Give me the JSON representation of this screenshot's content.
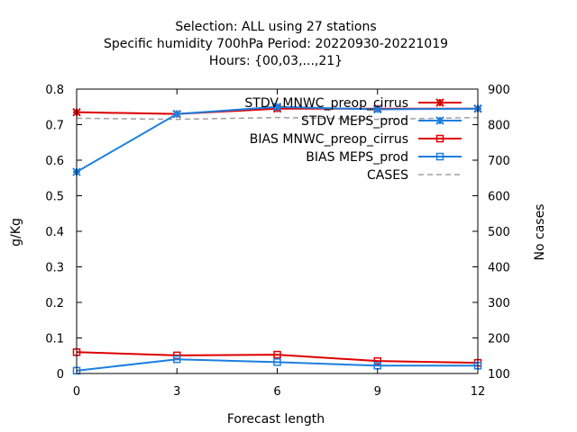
{
  "chart_data": {
    "type": "line",
    "title_lines": [
      "Selection: ALL using    27 stations",
      "Specific humidity 700hPa   Period: 20220930-20221019",
      "Hours: {00,03,...,21}"
    ],
    "xlabel": "Forecast length",
    "ylabel": "g/Kg",
    "y2label": "No cases",
    "x": [
      0,
      3,
      6,
      9,
      12
    ],
    "xlim": [
      0,
      12
    ],
    "xticks": [
      "0",
      "3",
      "6",
      "9",
      "12"
    ],
    "ylim": [
      0,
      0.8
    ],
    "yticks": [
      "0",
      "0.1",
      "0.2",
      "0.3",
      "0.4",
      "0.5",
      "0.6",
      "0.7",
      "0.8"
    ],
    "y2lim": [
      100,
      900
    ],
    "y2ticks": [
      "100",
      "200",
      "300",
      "400",
      "500",
      "600",
      "700",
      "800",
      "900"
    ],
    "legend_position": "top-right",
    "grid": false,
    "series": [
      {
        "name": "STDV MNWC_preop_cirrus",
        "axis": "y1",
        "color": "#dd0000",
        "marker": "star",
        "values": [
          0.735,
          0.73,
          0.745,
          0.745,
          0.745
        ]
      },
      {
        "name": "STDV MEPS_prod",
        "axis": "y1",
        "color": "#1c7fe0",
        "marker": "star",
        "values": [
          0.567,
          0.73,
          0.75,
          0.743,
          0.745
        ]
      },
      {
        "name": "BIAS MNWC_preop_cirrus",
        "axis": "y1",
        "color": "#dd0000",
        "marker": "square",
        "values": [
          0.06,
          0.051,
          0.053,
          0.035,
          0.03
        ]
      },
      {
        "name": "BIAS MEPS_prod",
        "axis": "y1",
        "color": "#1c7fe0",
        "marker": "square",
        "values": [
          0.008,
          0.04,
          0.032,
          0.022,
          0.022
        ]
      },
      {
        "name": "CASES",
        "axis": "y2",
        "color": "#a0a0a0",
        "marker": "none",
        "dashed": true,
        "values": [
          818,
          815,
          820,
          815,
          820
        ]
      }
    ]
  }
}
